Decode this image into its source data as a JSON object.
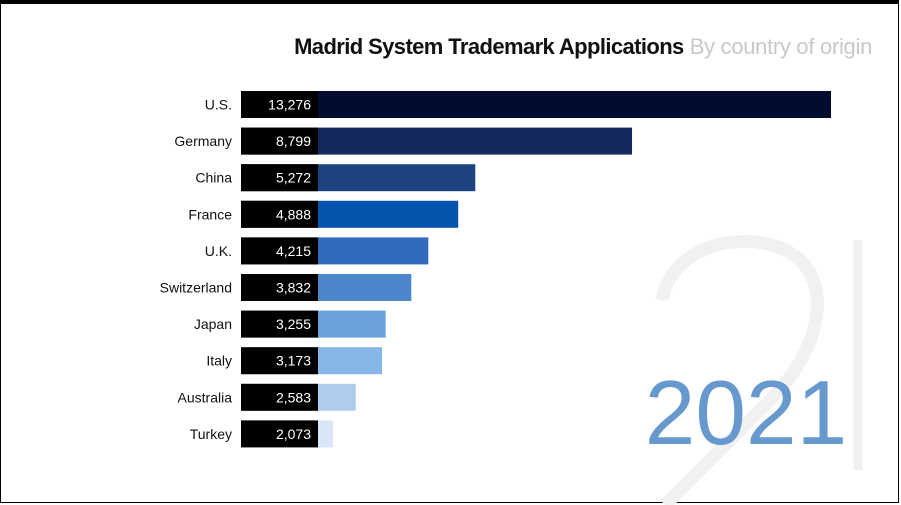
{
  "chart_data": {
    "type": "bar",
    "orientation": "horizontal",
    "title": "Madrid System Trademark Applications",
    "subtitle": "By country of origin",
    "year_label": "2021",
    "categories": [
      "U.S.",
      "Germany",
      "China",
      "France",
      "U.K.",
      "Switzerland",
      "Japan",
      "Italy",
      "Australia",
      "Turkey"
    ],
    "values": [
      13276,
      8799,
      5272,
      4888,
      4215,
      3832,
      3255,
      3173,
      2583,
      2073
    ],
    "value_labels": [
      "13,276",
      "8,799",
      "5,272",
      "4,888",
      "4,215",
      "3,832",
      "3,255",
      "3,173",
      "2,583",
      "2,073"
    ],
    "colors": [
      "#020c2e",
      "#14285c",
      "#1c4380",
      "#0453ad",
      "#2f6cc0",
      "#4c86cc",
      "#6aa1da",
      "#87b5e6",
      "#aecdee",
      "#d8e6f7"
    ],
    "value_box_color": "#000000",
    "year_color": "#6799cf"
  }
}
